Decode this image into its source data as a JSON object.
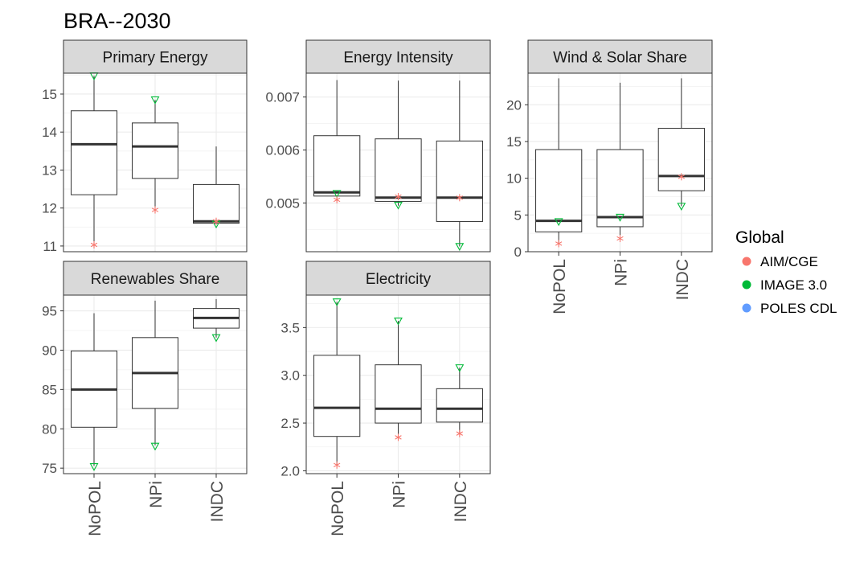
{
  "chart_data": {
    "type": "boxplot",
    "title": "BRA--2030",
    "categories": [
      "NoPOL",
      "NPi",
      "INDC"
    ],
    "legend": {
      "title": "Global",
      "position": "right",
      "entries": [
        {
          "name": "AIM/CGE",
          "color": "#F8766D",
          "shape": "asterisk"
        },
        {
          "name": "IMAGE 3.0",
          "color": "#00BA38",
          "shape": "triangle-down"
        },
        {
          "name": "POLES CDL",
          "color": "#619CFF",
          "shape": "circle"
        }
      ]
    },
    "grid": true,
    "panels": [
      {
        "name": "Primary Energy",
        "ylim": [
          10.85,
          15.55
        ],
        "yticks": [
          11,
          12,
          13,
          14,
          15
        ],
        "ytick_labels": [
          "11",
          "12",
          "13",
          "14",
          "15"
        ],
        "boxes": [
          {
            "category": "NoPOL",
            "min": 11.0,
            "q1": 12.35,
            "median": 13.68,
            "q3": 14.56,
            "max": 15.48
          },
          {
            "category": "NPi",
            "min": 11.92,
            "q1": 12.78,
            "median": 13.62,
            "q3": 14.24,
            "max": 14.85
          },
          {
            "category": "INDC",
            "min": 11.6,
            "q1": 11.6,
            "median": 11.65,
            "q3": 12.62,
            "max": 13.62
          }
        ],
        "points": [
          {
            "model": "IMAGE 3.0",
            "category": "NoPOL",
            "value": 15.48
          },
          {
            "model": "AIM/CGE",
            "category": "NoPOL",
            "value": 11.03
          },
          {
            "model": "IMAGE 3.0",
            "category": "NPi",
            "value": 14.85
          },
          {
            "model": "AIM/CGE",
            "category": "NPi",
            "value": 11.95
          },
          {
            "model": "IMAGE 3.0",
            "category": "INDC",
            "value": 11.58
          },
          {
            "model": "AIM/CGE",
            "category": "INDC",
            "value": 11.65
          }
        ]
      },
      {
        "name": "Energy Intensity",
        "ylim": [
          0.00408,
          0.00745
        ],
        "yticks": [
          0.005,
          0.006,
          0.007
        ],
        "ytick_labels": [
          "0.005",
          "0.006",
          "0.007"
        ],
        "boxes": [
          {
            "category": "NoPOL",
            "min": 0.00505,
            "q1": 0.00513,
            "median": 0.0052,
            "q3": 0.00627,
            "max": 0.00732
          },
          {
            "category": "NPi",
            "min": 0.00495,
            "q1": 0.00503,
            "median": 0.0051,
            "q3": 0.00621,
            "max": 0.00731
          },
          {
            "category": "INDC",
            "min": 0.00418,
            "q1": 0.00465,
            "median": 0.0051,
            "q3": 0.00617,
            "max": 0.00731
          }
        ],
        "points": [
          {
            "model": "IMAGE 3.0",
            "category": "NoPOL",
            "value": 0.00518
          },
          {
            "model": "AIM/CGE",
            "category": "NoPOL",
            "value": 0.00506
          },
          {
            "model": "IMAGE 3.0",
            "category": "NPi",
            "value": 0.00496
          },
          {
            "model": "AIM/CGE",
            "category": "NPi",
            "value": 0.00512
          },
          {
            "model": "IMAGE 3.0",
            "category": "INDC",
            "value": 0.00418
          },
          {
            "model": "AIM/CGE",
            "category": "INDC",
            "value": 0.0051
          }
        ]
      },
      {
        "name": "Wind & Solar Share",
        "ylim": [
          0,
          24.3
        ],
        "yticks": [
          0,
          5,
          10,
          15,
          20
        ],
        "ytick_labels": [
          "0",
          "5",
          "10",
          "15",
          "20"
        ],
        "boxes": [
          {
            "category": "NoPOL",
            "min": 1.1,
            "q1": 2.7,
            "median": 4.2,
            "q3": 13.9,
            "max": 23.6
          },
          {
            "category": "NPi",
            "min": 1.8,
            "q1": 3.4,
            "median": 4.7,
            "q3": 13.9,
            "max": 23.0
          },
          {
            "category": "INDC",
            "min": 6.2,
            "q1": 8.3,
            "median": 10.3,
            "q3": 16.8,
            "max": 23.6
          }
        ],
        "points": [
          {
            "model": "IMAGE 3.0",
            "category": "NoPOL",
            "value": 4.1
          },
          {
            "model": "AIM/CGE",
            "category": "NoPOL",
            "value": 1.1
          },
          {
            "model": "IMAGE 3.0",
            "category": "NPi",
            "value": 4.7
          },
          {
            "model": "AIM/CGE",
            "category": "NPi",
            "value": 1.8
          },
          {
            "model": "IMAGE 3.0",
            "category": "INDC",
            "value": 6.2
          },
          {
            "model": "AIM/CGE",
            "category": "INDC",
            "value": 10.2
          }
        ]
      },
      {
        "name": "Renewables Share",
        "ylim": [
          74.3,
          97.0
        ],
        "yticks": [
          75,
          80,
          85,
          90,
          95
        ],
        "ytick_labels": [
          "75",
          "80",
          "85",
          "90",
          "95"
        ],
        "boxes": [
          {
            "category": "NoPOL",
            "min": 75.3,
            "q1": 80.2,
            "median": 85.0,
            "q3": 89.9,
            "max": 94.7
          },
          {
            "category": "NPi",
            "min": 77.9,
            "q1": 82.6,
            "median": 87.1,
            "q3": 91.6,
            "max": 96.3
          },
          {
            "category": "INDC",
            "min": 91.6,
            "q1": 92.8,
            "median": 94.1,
            "q3": 95.3,
            "max": 96.5
          }
        ],
        "points": [
          {
            "model": "IMAGE 3.0",
            "category": "NoPOL",
            "value": 75.2
          },
          {
            "model": "IMAGE 3.0",
            "category": "NPi",
            "value": 77.8
          },
          {
            "model": "IMAGE 3.0",
            "category": "INDC",
            "value": 91.6
          }
        ]
      },
      {
        "name": "Electricity",
        "ylim": [
          1.97,
          3.84
        ],
        "yticks": [
          2.0,
          2.5,
          3.0,
          3.5
        ],
        "ytick_labels": [
          "2.0",
          "2.5",
          "3.0",
          "3.5"
        ],
        "boxes": [
          {
            "category": "NoPOL",
            "min": 2.06,
            "q1": 2.36,
            "median": 2.66,
            "q3": 3.21,
            "max": 3.77
          },
          {
            "category": "NPi",
            "min": 2.35,
            "q1": 2.5,
            "median": 2.65,
            "q3": 3.11,
            "max": 3.57
          },
          {
            "category": "INDC",
            "min": 2.39,
            "q1": 2.51,
            "median": 2.65,
            "q3": 2.86,
            "max": 3.08
          }
        ],
        "points": [
          {
            "model": "IMAGE 3.0",
            "category": "NoPOL",
            "value": 3.77
          },
          {
            "model": "AIM/CGE",
            "category": "NoPOL",
            "value": 2.06
          },
          {
            "model": "IMAGE 3.0",
            "category": "NPi",
            "value": 3.57
          },
          {
            "model": "AIM/CGE",
            "category": "NPi",
            "value": 2.35
          },
          {
            "model": "IMAGE 3.0",
            "category": "INDC",
            "value": 3.08
          },
          {
            "model": "AIM/CGE",
            "category": "INDC",
            "value": 2.39
          }
        ]
      }
    ]
  }
}
